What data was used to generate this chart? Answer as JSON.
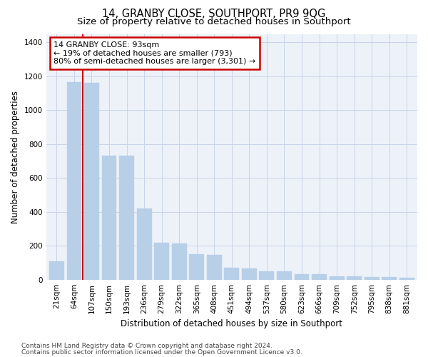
{
  "title": "14, GRANBY CLOSE, SOUTHPORT, PR9 9QG",
  "subtitle": "Size of property relative to detached houses in Southport",
  "xlabel": "Distribution of detached houses by size in Southport",
  "ylabel": "Number of detached properties",
  "categories": [
    "21sqm",
    "64sqm",
    "107sqm",
    "150sqm",
    "193sqm",
    "236sqm",
    "279sqm",
    "322sqm",
    "365sqm",
    "408sqm",
    "451sqm",
    "494sqm",
    "537sqm",
    "580sqm",
    "623sqm",
    "666sqm",
    "709sqm",
    "752sqm",
    "795sqm",
    "838sqm",
    "881sqm"
  ],
  "values": [
    107,
    1165,
    1160,
    730,
    730,
    418,
    218,
    215,
    150,
    148,
    70,
    68,
    48,
    50,
    32,
    32,
    20,
    20,
    15,
    15,
    12
  ],
  "bar_color": "#b8cfe8",
  "highlight_color": "#cc0000",
  "annotation_text": "14 GRANBY CLOSE: 93sqm\n← 19% of detached houses are smaller (793)\n80% of semi-detached houses are larger (3,301) →",
  "vertical_line_x": 1.5,
  "ylim": [
    0,
    1450
  ],
  "yticks": [
    0,
    200,
    400,
    600,
    800,
    1000,
    1200,
    1400
  ],
  "footer_line1": "Contains HM Land Registry data © Crown copyright and database right 2024.",
  "footer_line2": "Contains public sector information licensed under the Open Government Licence v3.0.",
  "bg_color": "#ffffff",
  "plot_bg_color": "#edf2f9",
  "grid_color": "#c8d4e8",
  "title_fontsize": 10.5,
  "subtitle_fontsize": 9.5,
  "axis_label_fontsize": 8.5,
  "tick_fontsize": 7.5,
  "footer_fontsize": 6.5,
  "annot_fontsize": 8
}
